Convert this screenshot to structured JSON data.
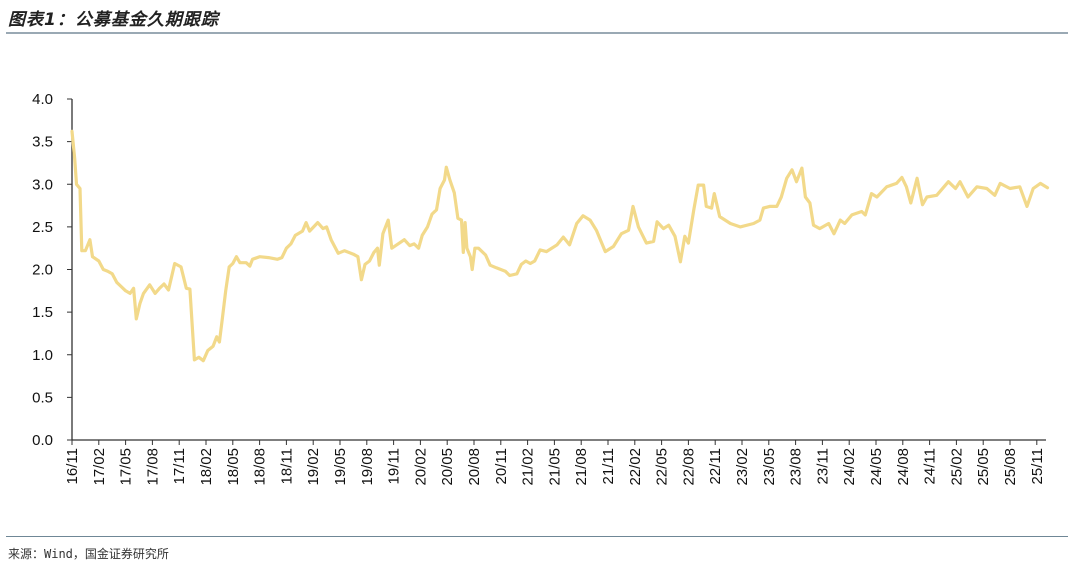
{
  "title": "图表1：公募基金久期跟踪",
  "source": "来源：Wind，国金证券研究所",
  "chart_data": {
    "type": "line",
    "title": "图表1：公募基金久期跟踪",
    "xlabel": "",
    "ylabel": "",
    "ylim": [
      0,
      4
    ],
    "yticks": [
      "0.0",
      "0.5",
      "1.0",
      "1.5",
      "2.0",
      "2.5",
      "3.0",
      "3.5",
      "4.0"
    ],
    "xticks": [
      "16/11",
      "17/02",
      "17/05",
      "17/08",
      "17/11",
      "18/02",
      "18/05",
      "18/08",
      "18/11",
      "19/02",
      "19/05",
      "19/08",
      "19/11",
      "20/02",
      "20/05",
      "20/08",
      "20/11",
      "21/02",
      "21/05",
      "21/08",
      "21/11",
      "22/02",
      "22/05",
      "22/08",
      "22/11",
      "23/02",
      "23/05",
      "23/08",
      "23/11",
      "24/02",
      "24/05",
      "24/08",
      "24/11",
      "25/02",
      "25/05",
      "25/08",
      "25/11"
    ],
    "x_unit": "months since 2016/11",
    "xlim": [
      0,
      109.2
    ],
    "grid": false,
    "line_color": "#f2d98a",
    "series": [
      {
        "name": "公募基金久期",
        "points": [
          [
            0,
            3.62
          ],
          [
            0.3,
            3.3
          ],
          [
            0.5,
            3.0
          ],
          [
            0.9,
            2.95
          ],
          [
            1.1,
            2.22
          ],
          [
            1.5,
            2.22
          ],
          [
            2,
            2.35
          ],
          [
            2.3,
            2.15
          ],
          [
            3,
            2.1
          ],
          [
            3.5,
            2.0
          ],
          [
            4,
            1.98
          ],
          [
            4.5,
            1.95
          ],
          [
            5,
            1.85
          ],
          [
            5.5,
            1.8
          ],
          [
            6,
            1.75
          ],
          [
            6.5,
            1.72
          ],
          [
            6.9,
            1.78
          ],
          [
            7.2,
            1.42
          ],
          [
            7.6,
            1.6
          ],
          [
            8,
            1.72
          ],
          [
            8.7,
            1.82
          ],
          [
            9.3,
            1.72
          ],
          [
            9.8,
            1.78
          ],
          [
            10.3,
            1.83
          ],
          [
            10.8,
            1.76
          ],
          [
            11.5,
            2.07
          ],
          [
            12.2,
            2.03
          ],
          [
            12.8,
            1.78
          ],
          [
            13.2,
            1.77
          ],
          [
            13.7,
            0.94
          ],
          [
            14.2,
            0.97
          ],
          [
            14.7,
            0.93
          ],
          [
            15.2,
            1.05
          ],
          [
            15.8,
            1.1
          ],
          [
            16.2,
            1.21
          ],
          [
            16.5,
            1.15
          ],
          [
            16.8,
            1.4
          ],
          [
            17.2,
            1.75
          ],
          [
            17.6,
            2.03
          ],
          [
            18.0,
            2.07
          ],
          [
            18.4,
            2.15
          ],
          [
            18.8,
            2.08
          ],
          [
            19.5,
            2.08
          ],
          [
            19.9,
            2.04
          ],
          [
            20.2,
            2.12
          ],
          [
            21,
            2.15
          ],
          [
            22,
            2.14
          ],
          [
            23,
            2.12
          ],
          [
            23.5,
            2.14
          ],
          [
            24,
            2.25
          ],
          [
            24.5,
            2.3
          ],
          [
            25,
            2.4
          ],
          [
            25.8,
            2.45
          ],
          [
            26.2,
            2.55
          ],
          [
            26.6,
            2.45
          ],
          [
            27.5,
            2.55
          ],
          [
            28.1,
            2.48
          ],
          [
            28.5,
            2.5
          ],
          [
            29,
            2.35
          ],
          [
            29.8,
            2.19
          ],
          [
            30.5,
            2.22
          ],
          [
            31.5,
            2.18
          ],
          [
            32,
            2.15
          ],
          [
            32.4,
            1.88
          ],
          [
            32.8,
            2.06
          ],
          [
            33.3,
            2.1
          ],
          [
            33.8,
            2.2
          ],
          [
            34.2,
            2.25
          ],
          [
            34.4,
            2.05
          ],
          [
            34.8,
            2.42
          ],
          [
            35.4,
            2.58
          ],
          [
            35.8,
            2.25
          ],
          [
            36.5,
            2.3
          ],
          [
            37.2,
            2.35
          ],
          [
            37.8,
            2.28
          ],
          [
            38.3,
            2.3
          ],
          [
            38.8,
            2.25
          ],
          [
            39.2,
            2.4
          ],
          [
            39.8,
            2.5
          ],
          [
            40.3,
            2.65
          ],
          [
            40.8,
            2.7
          ],
          [
            41.2,
            2.95
          ],
          [
            41.7,
            3.05
          ],
          [
            41.9,
            3.2
          ],
          [
            42.3,
            3.05
          ],
          [
            42.8,
            2.9
          ],
          [
            43.2,
            2.6
          ],
          [
            43.6,
            2.58
          ],
          [
            43.8,
            2.2
          ],
          [
            44.0,
            2.55
          ],
          [
            44.2,
            2.25
          ],
          [
            44.6,
            2.15
          ],
          [
            44.8,
            2.0
          ],
          [
            45.1,
            2.25
          ],
          [
            45.5,
            2.25
          ],
          [
            46.3,
            2.17
          ],
          [
            46.8,
            2.05
          ],
          [
            47.5,
            2.02
          ],
          [
            48.5,
            1.98
          ],
          [
            49,
            1.93
          ],
          [
            49.8,
            1.95
          ],
          [
            50.3,
            2.06
          ],
          [
            50.8,
            2.1
          ],
          [
            51.3,
            2.07
          ],
          [
            51.8,
            2.1
          ],
          [
            52.4,
            2.23
          ],
          [
            53.1,
            2.21
          ],
          [
            54.3,
            2.29
          ],
          [
            55,
            2.38
          ],
          [
            55.7,
            2.29
          ],
          [
            56.5,
            2.54
          ],
          [
            57.2,
            2.63
          ],
          [
            58,
            2.58
          ],
          [
            58.7,
            2.46
          ],
          [
            59.7,
            2.21
          ],
          [
            60.6,
            2.27
          ],
          [
            61.5,
            2.42
          ],
          [
            62.3,
            2.46
          ],
          [
            62.8,
            2.74
          ],
          [
            63.4,
            2.5
          ],
          [
            64.3,
            2.31
          ],
          [
            65.1,
            2.33
          ],
          [
            65.5,
            2.56
          ],
          [
            66.2,
            2.48
          ],
          [
            66.8,
            2.52
          ],
          [
            67.5,
            2.39
          ],
          [
            68.1,
            2.09
          ],
          [
            68.6,
            2.39
          ],
          [
            69,
            2.31
          ],
          [
            69.6,
            2.7
          ],
          [
            70.1,
            2.99
          ],
          [
            70.7,
            2.99
          ],
          [
            71,
            2.74
          ],
          [
            71.6,
            2.72
          ],
          [
            71.9,
            2.89
          ],
          [
            72.5,
            2.62
          ],
          [
            73.7,
            2.54
          ],
          [
            74.8,
            2.5
          ],
          [
            76.3,
            2.54
          ],
          [
            77,
            2.58
          ],
          [
            77.4,
            2.72
          ],
          [
            78.1,
            2.74
          ],
          [
            78.9,
            2.74
          ],
          [
            79.4,
            2.85
          ],
          [
            80,
            3.07
          ],
          [
            80.6,
            3.17
          ],
          [
            81.1,
            3.03
          ],
          [
            81.7,
            3.19
          ],
          [
            82.1,
            2.85
          ],
          [
            82.6,
            2.78
          ],
          [
            83,
            2.52
          ],
          [
            83.7,
            2.48
          ],
          [
            84.7,
            2.54
          ],
          [
            85.3,
            2.42
          ],
          [
            86,
            2.58
          ],
          [
            86.5,
            2.54
          ],
          [
            87.3,
            2.64
          ],
          [
            88.4,
            2.68
          ],
          [
            88.8,
            2.64
          ],
          [
            89.5,
            2.89
          ],
          [
            90.1,
            2.85
          ],
          [
            91.2,
            2.97
          ],
          [
            92.3,
            3.01
          ],
          [
            92.9,
            3.08
          ],
          [
            93.4,
            2.97
          ],
          [
            93.9,
            2.78
          ],
          [
            94.6,
            3.07
          ],
          [
            95.2,
            2.76
          ],
          [
            95.7,
            2.85
          ],
          [
            96.8,
            2.87
          ],
          [
            98.1,
            3.03
          ],
          [
            98.9,
            2.95
          ],
          [
            99.4,
            3.03
          ],
          [
            100.3,
            2.85
          ],
          [
            101.3,
            2.97
          ],
          [
            102.4,
            2.95
          ],
          [
            103.3,
            2.87
          ],
          [
            103.9,
            3.01
          ],
          [
            105,
            2.95
          ],
          [
            106.1,
            2.97
          ],
          [
            106.9,
            2.74
          ],
          [
            107.6,
            2.95
          ],
          [
            108.4,
            3.01
          ],
          [
            109.2,
            2.96
          ]
        ]
      }
    ]
  }
}
